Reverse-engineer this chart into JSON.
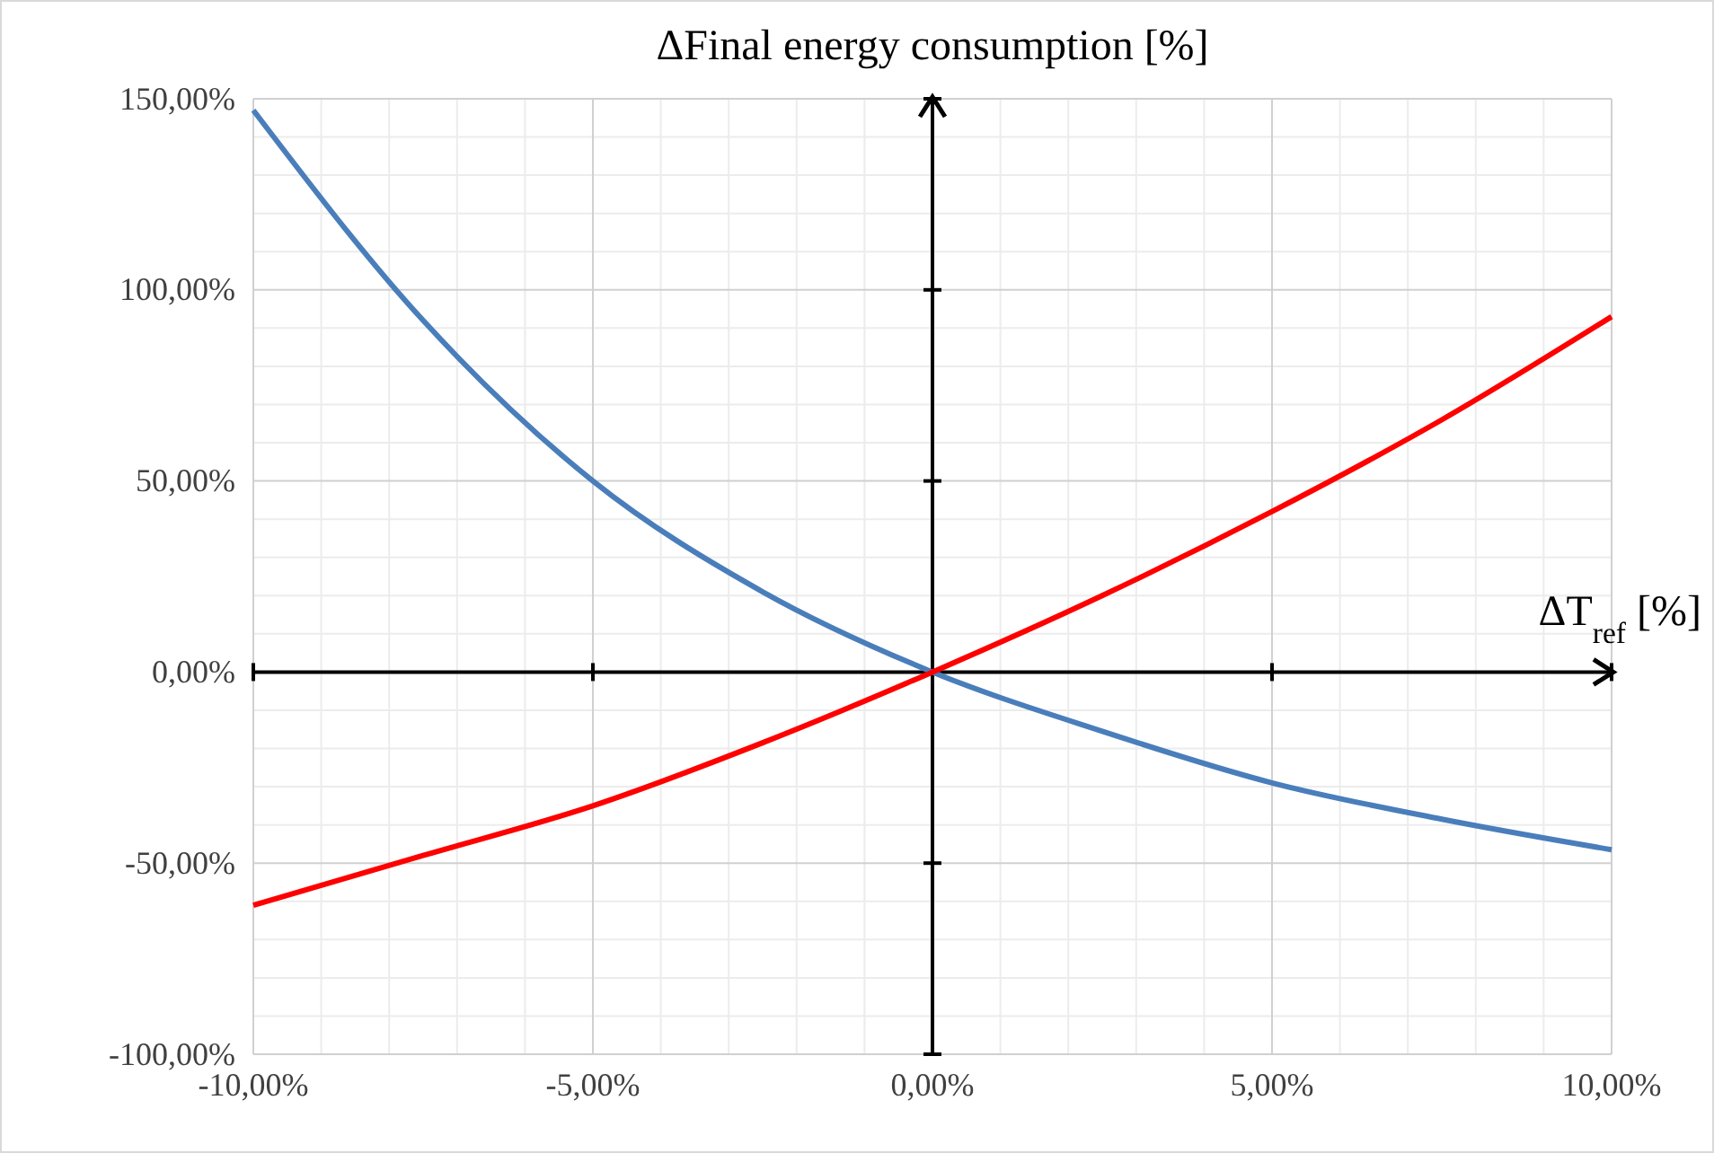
{
  "chart_data": {
    "type": "line",
    "ylabel": "ΔFinal energy consumption [%]",
    "xlabel": "ΔT$_{ref}$ [%]",
    "x": [
      -10,
      -7.5,
      -5,
      -2.5,
      0,
      2.5,
      5,
      7.5,
      10
    ],
    "series": [
      {
        "color": "#4a7ebb",
        "values": [
          147,
          92,
          50,
          21,
          0,
          -15.5,
          -29,
          -38.5,
          -46.5
        ]
      },
      {
        "color": "#ff0000",
        "values": [
          -61,
          -48,
          -35,
          -18.5,
          0,
          20,
          42,
          66,
          93
        ]
      }
    ],
    "xlim": [
      -10,
      10
    ],
    "ylim": [
      -100,
      150
    ],
    "xticks": [
      {
        "value": -10,
        "label": "-10,00%"
      },
      {
        "value": -5,
        "label": "-5,00%"
      },
      {
        "value": 0,
        "label": "0,00%"
      },
      {
        "value": 5,
        "label": "5,00%"
      },
      {
        "value": 10,
        "label": "10,00%"
      }
    ],
    "yticks": [
      {
        "value": -100,
        "label": "-100,00%"
      },
      {
        "value": -50,
        "label": "-50,00%"
      },
      {
        "value": 0,
        "label": "0,00%"
      },
      {
        "value": 50,
        "label": "50,00%"
      },
      {
        "value": 100,
        "label": "100,00%"
      },
      {
        "value": 150,
        "label": "150,00%"
      }
    ],
    "grid": true,
    "marker": "none",
    "line_style": "solid"
  }
}
